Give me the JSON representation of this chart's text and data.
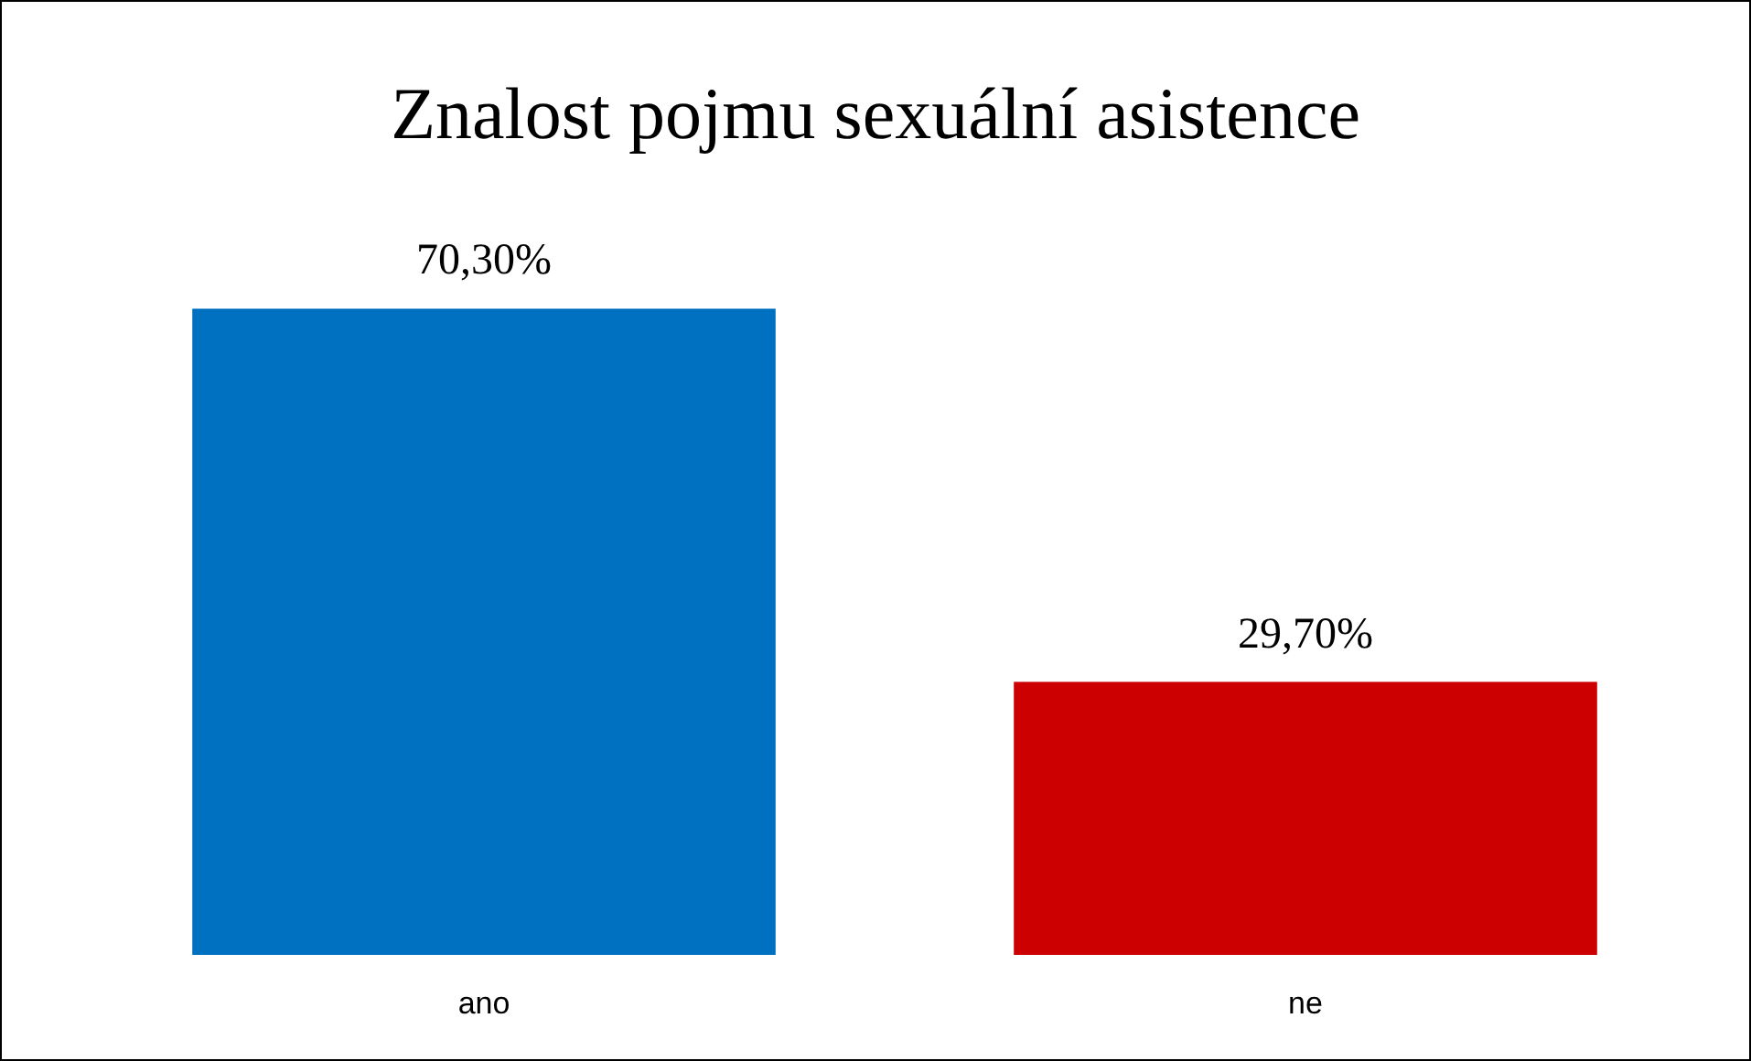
{
  "chart_data": {
    "type": "bar",
    "title": "Znalost pojmu sexuální asistence",
    "categories": [
      "ano",
      "ne"
    ],
    "values": [
      70.3,
      29.7
    ],
    "colors": [
      "#0070c0",
      "#cc0000"
    ],
    "value_labels": [
      "70,30%",
      "29,70%"
    ]
  }
}
